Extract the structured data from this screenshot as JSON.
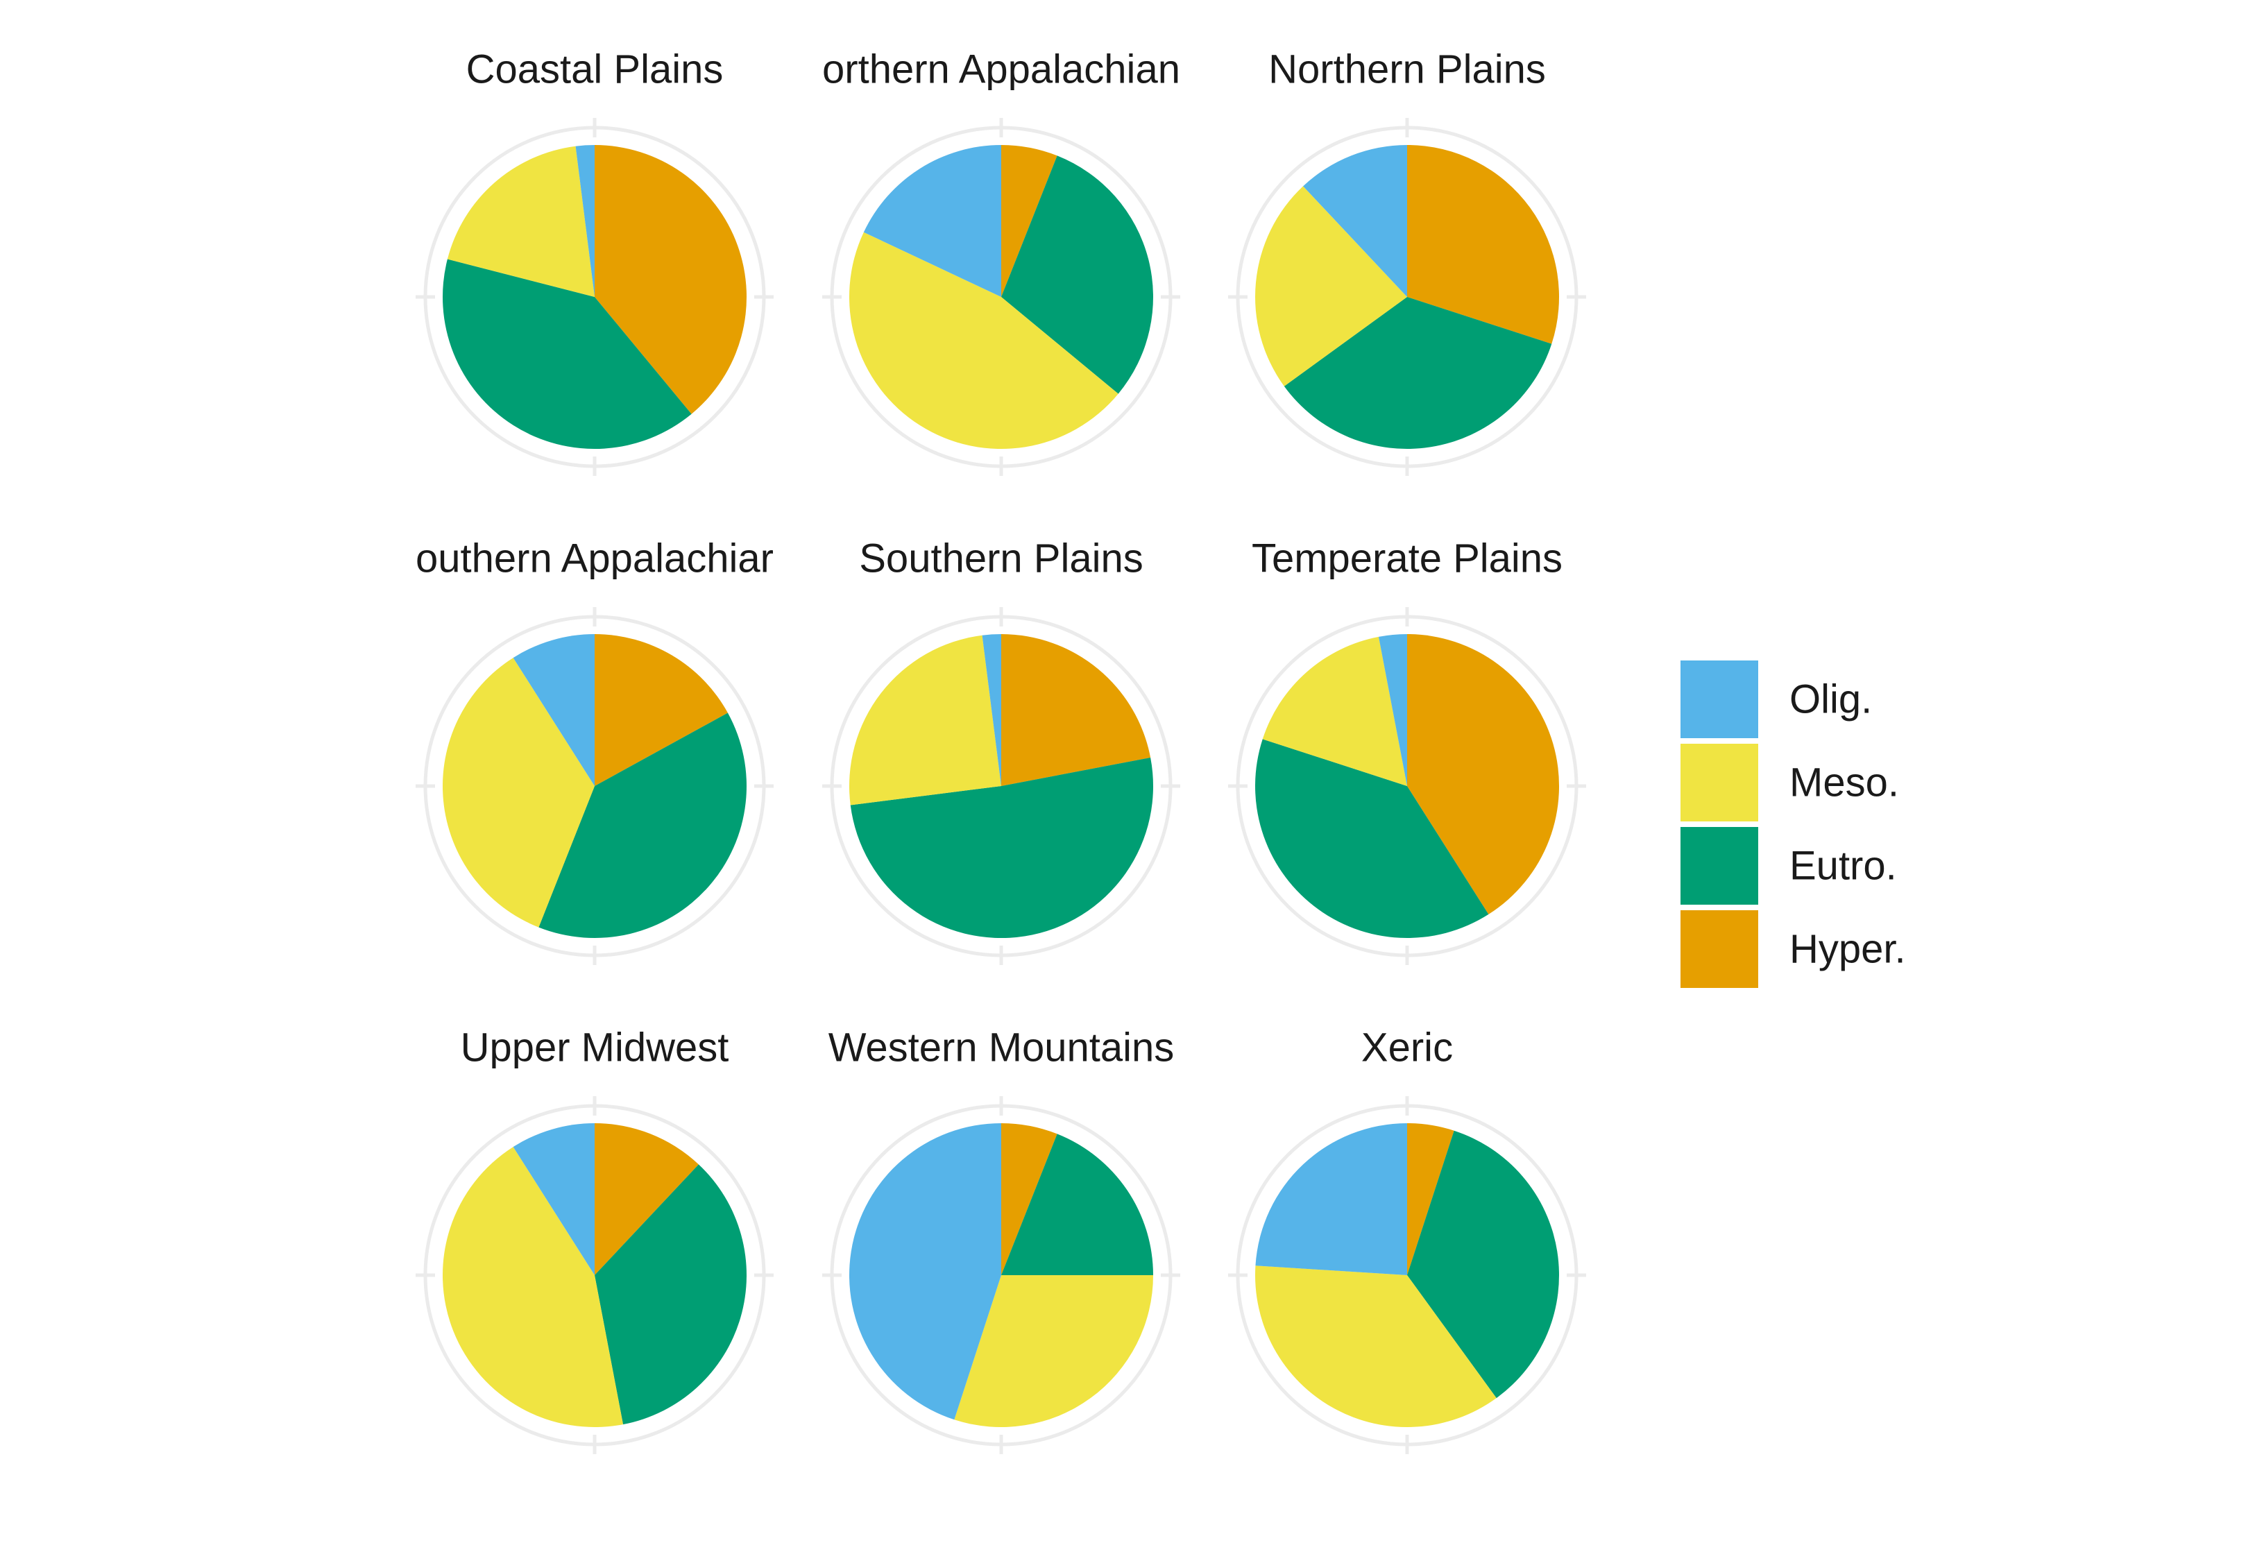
{
  "colors": {
    "Olig.": "#56B4E9",
    "Meso.": "#F0E442",
    "Eutro.": "#009E73",
    "Hyper.": "#E69F00",
    "grid": "#ebebeb",
    "background": "#ffffff"
  },
  "chart_data": {
    "type": "pie",
    "layout": "facet-grid-3x3",
    "legend_position": "right",
    "categories": [
      "Olig.",
      "Meso.",
      "Eutro.",
      "Hyper."
    ],
    "panels": [
      {
        "title": "Coastal Plains",
        "display_title": "Coastal Plains",
        "values": {
          "Hyper.": 39,
          "Eutro.": 40,
          "Meso.": 19,
          "Olig.": 2
        }
      },
      {
        "title": "Northern Appalachian",
        "display_title": "orthern Appalachian",
        "values": {
          "Hyper.": 6,
          "Eutro.": 30,
          "Meso.": 46,
          "Olig.": 18
        }
      },
      {
        "title": "Northern Plains",
        "display_title": "Northern Plains",
        "values": {
          "Hyper.": 30,
          "Eutro.": 35,
          "Meso.": 23,
          "Olig.": 12
        }
      },
      {
        "title": "Southern Appalachian",
        "display_title": "outhern Appalachiar",
        "values": {
          "Hyper.": 17,
          "Eutro.": 39,
          "Meso.": 35,
          "Olig.": 9
        }
      },
      {
        "title": "Southern Plains",
        "display_title": "Southern Plains",
        "values": {
          "Hyper.": 22,
          "Eutro.": 51,
          "Meso.": 25,
          "Olig.": 2
        }
      },
      {
        "title": "Temperate Plains",
        "display_title": "Temperate Plains",
        "values": {
          "Hyper.": 41,
          "Eutro.": 39,
          "Meso.": 17,
          "Olig.": 3
        }
      },
      {
        "title": "Upper Midwest",
        "display_title": "Upper Midwest",
        "values": {
          "Hyper.": 12,
          "Eutro.": 35,
          "Meso.": 44,
          "Olig.": 9
        }
      },
      {
        "title": "Western Mountains",
        "display_title": "Western Mountains",
        "values": {
          "Hyper.": 6,
          "Eutro.": 19,
          "Meso.": 30,
          "Olig.": 45
        }
      },
      {
        "title": "Xeric",
        "display_title": "Xeric",
        "values": {
          "Hyper.": 5,
          "Eutro.": 35,
          "Meso.": 36,
          "Olig.": 24
        }
      }
    ],
    "legend": [
      "Olig.",
      "Meso.",
      "Eutro.",
      "Hyper."
    ]
  }
}
